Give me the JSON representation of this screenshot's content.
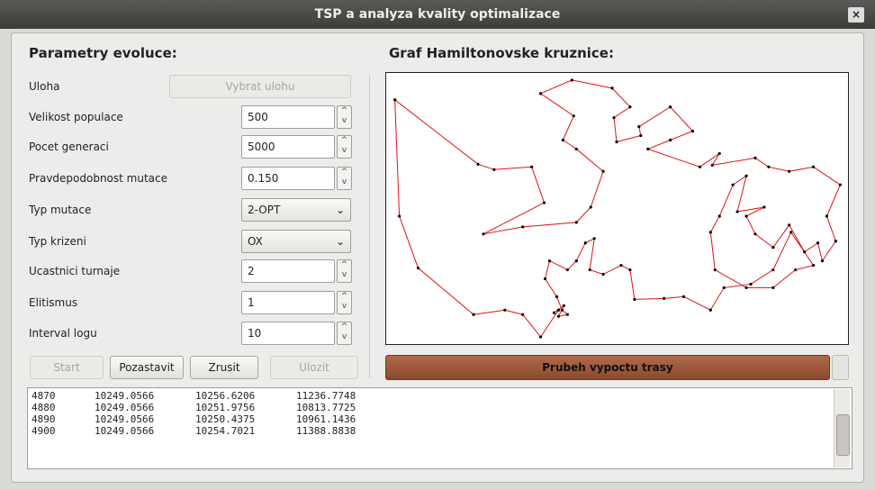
{
  "window": {
    "title": "TSP a analyza kvality optimalizace"
  },
  "left": {
    "heading": "Parametry evoluce:",
    "fields": [
      {
        "label": "Uloha",
        "value": "Vybrat ulohu"
      },
      {
        "label": "Velikost populace",
        "value": "500"
      },
      {
        "label": "Pocet generaci",
        "value": "5000"
      },
      {
        "label": "Pravdepodobnost mutace",
        "value": "0.150"
      },
      {
        "label": "Typ mutace",
        "value": "2-OPT"
      },
      {
        "label": "Typ krizeni",
        "value": "OX"
      },
      {
        "label": "Ucastnici turnaje",
        "value": "2"
      },
      {
        "label": "Elitismus",
        "value": "1"
      },
      {
        "label": "Interval logu",
        "value": "10"
      }
    ],
    "buttons": [
      "Start",
      "Pozastavit",
      "Zrusit",
      "Ulozit"
    ]
  },
  "right": {
    "heading": "Graf Hamiltonovske kruznice:",
    "progress": "Prubeh vypoctu trasy"
  },
  "log": {
    "rows": [
      [
        "4870",
        "10249.0566",
        "10256.6206",
        "11236.7748"
      ],
      [
        "4880",
        "10249.0566",
        "10251.9756",
        "10813.7725"
      ],
      [
        "4890",
        "10249.0566",
        "10250.4375",
        "10961.1436"
      ],
      [
        "4900",
        "10249.0566",
        "10254.7021",
        "11388.8838"
      ]
    ]
  }
}
